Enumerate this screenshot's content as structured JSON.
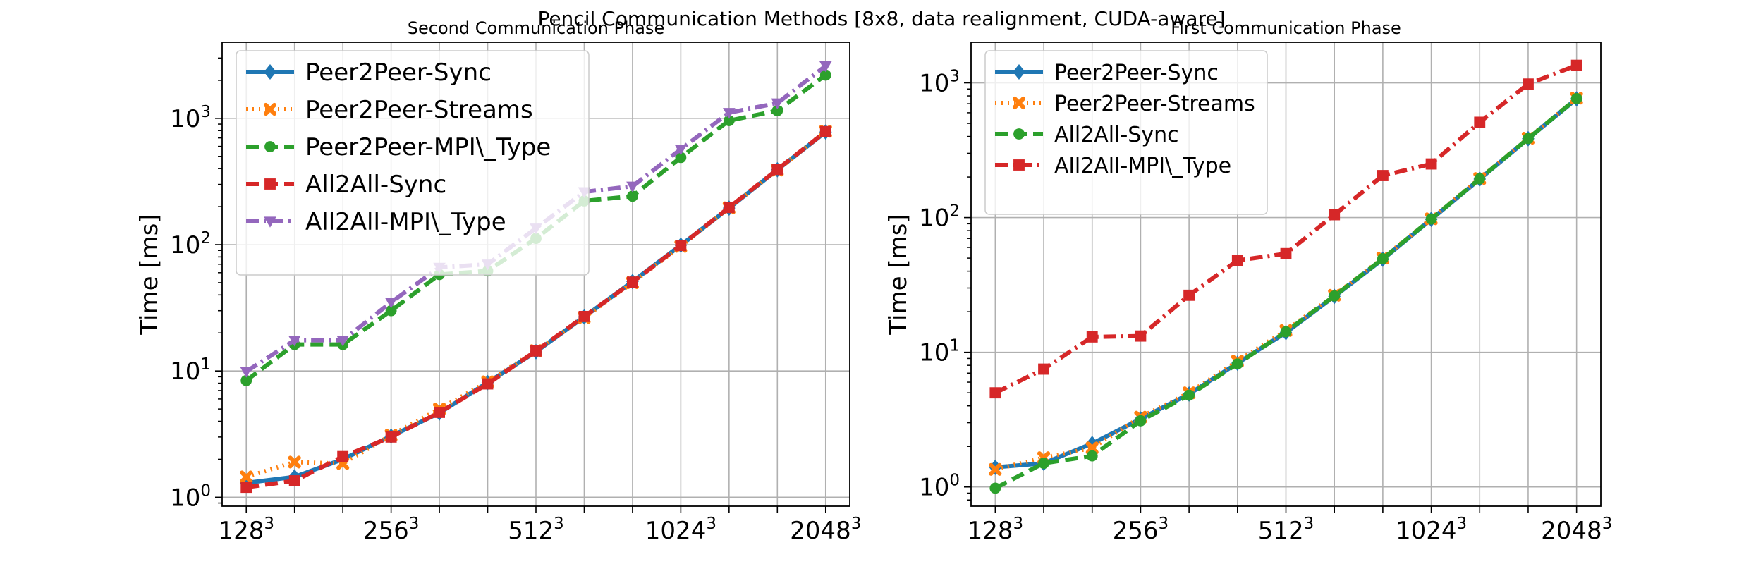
{
  "figure": {
    "title": "Pencil Communication Methods [8x8, data realignment, CUDA-aware]"
  },
  "styles": {
    "Peer2Peer-Sync": {
      "color": "#1f77b4",
      "dash": "",
      "marker": "diamond"
    },
    "Peer2Peer-Streams": {
      "color": "#ff7f0e",
      "dash": "2,7",
      "marker": "x"
    },
    "Peer2Peer-MPI\\_Type": {
      "color": "#2ca02c",
      "dash": "18,9",
      "marker": "circle"
    },
    "All2All-Sync": {
      "color": "#d62728",
      "dash": "18,9",
      "marker": "square"
    },
    "All2All-MPI\\_Type": {
      "color": "#9467bd",
      "dash": "18,7,3,7",
      "marker": "triangle-down"
    },
    "All2All-MPI\\_Type@right": {
      "color": "#d62728",
      "dash": "18,7,3,7",
      "marker": "square"
    },
    "All2All-Sync@right": {
      "color": "#2ca02c",
      "dash": "18,9",
      "marker": "circle"
    }
  },
  "chart_data": [
    {
      "type": "line",
      "title": "Second Communication Phase",
      "xlabel": "",
      "ylabel": "Time [ms]",
      "yscale": "log",
      "ylim": [
        0.85,
        4000
      ],
      "x_ticks": [
        {
          "base": "128",
          "exp": "3",
          "pos": 1
        },
        {
          "base": "256",
          "exp": "3",
          "pos": 4
        },
        {
          "base": "512",
          "exp": "3",
          "pos": 7
        },
        {
          "base": "1024",
          "exp": "3",
          "pos": 10
        },
        {
          "base": "2048",
          "exp": "3",
          "pos": 13
        }
      ],
      "y_ticks": [
        {
          "base": "10",
          "exp": "0",
          "value": 1
        },
        {
          "base": "10",
          "exp": "1",
          "value": 10
        },
        {
          "base": "10",
          "exp": "2",
          "value": 100
        },
        {
          "base": "10",
          "exp": "3",
          "value": 1000
        }
      ],
      "x_positions": [
        1,
        2,
        3,
        4,
        5,
        6,
        7,
        8,
        9,
        10,
        11,
        12,
        13
      ],
      "grid": true,
      "legend_position": "upper-left",
      "series": [
        {
          "name": "Peer2Peer-Sync",
          "style": "Peer2Peer-Sync",
          "values": [
            1.3,
            1.45,
            2.0,
            3.05,
            4.65,
            8.1,
            14.2,
            26.8,
            51.0,
            99.0,
            195.0,
            392.0,
            780.0
          ]
        },
        {
          "name": "Peer2Peer-Streams",
          "style": "Peer2Peer-Streams",
          "values": [
            1.45,
            1.9,
            1.85,
            3.1,
            5.0,
            8.2,
            14.5,
            26.5,
            50.0,
            97.0,
            196.0,
            390.0,
            790.0
          ]
        },
        {
          "name": "Peer2Peer-MPI\\_Type",
          "style": "Peer2Peer-MPI\\_Type",
          "values": [
            8.4,
            16.2,
            16.2,
            30.0,
            58.0,
            62.0,
            112.0,
            222.0,
            242.0,
            490.0,
            960.0,
            1150.0,
            2200.0
          ]
        },
        {
          "name": "All2All-Sync",
          "style": "All2All-Sync",
          "values": [
            1.2,
            1.35,
            2.1,
            3.0,
            4.7,
            7.9,
            14.4,
            27.0,
            50.5,
            98.5,
            197.0,
            394.0,
            785.0
          ]
        },
        {
          "name": "All2All-MPI\\_Type",
          "style": "All2All-MPI\\_Type",
          "values": [
            9.9,
            17.5,
            17.5,
            35.0,
            66.0,
            70.0,
            135.0,
            262.0,
            290.0,
            570.0,
            1110.0,
            1320.0,
            2600.0
          ]
        }
      ]
    },
    {
      "type": "line",
      "title": "First Communication Phase",
      "xlabel": "",
      "ylabel": "Time [ms]",
      "yscale": "log",
      "ylim": [
        0.72,
        2000
      ],
      "x_ticks": [
        {
          "base": "128",
          "exp": "3",
          "pos": 1
        },
        {
          "base": "256",
          "exp": "3",
          "pos": 4
        },
        {
          "base": "512",
          "exp": "3",
          "pos": 7
        },
        {
          "base": "1024",
          "exp": "3",
          "pos": 10
        },
        {
          "base": "2048",
          "exp": "3",
          "pos": 13
        }
      ],
      "y_ticks": [
        {
          "base": "10",
          "exp": "0",
          "value": 1
        },
        {
          "base": "10",
          "exp": "1",
          "value": 10
        },
        {
          "base": "10",
          "exp": "2",
          "value": 100
        },
        {
          "base": "10",
          "exp": "3",
          "value": 1000
        }
      ],
      "x_positions": [
        1,
        2,
        3,
        4,
        5,
        6,
        7,
        8,
        9,
        10,
        11,
        12,
        13
      ],
      "grid": true,
      "legend_position": "upper-left",
      "series": [
        {
          "name": "Peer2Peer-Sync",
          "style": "Peer2Peer-Sync",
          "values": [
            1.4,
            1.5,
            2.1,
            3.2,
            4.9,
            8.3,
            14.0,
            26.0,
            49.0,
            97.0,
            193.0,
            385.0,
            760.0
          ]
        },
        {
          "name": "Peer2Peer-Streams",
          "style": "Peer2Peer-Streams",
          "values": [
            1.35,
            1.65,
            1.95,
            3.3,
            5.0,
            8.6,
            14.5,
            26.5,
            50.0,
            98.0,
            195.0,
            388.0,
            770.0
          ]
        },
        {
          "name": "All2All-Sync",
          "style": "All2All-Sync@right",
          "values": [
            0.98,
            1.5,
            1.7,
            3.1,
            4.8,
            8.2,
            14.2,
            26.2,
            49.5,
            97.5,
            194.0,
            386.0,
            765.0
          ]
        },
        {
          "name": "All2All-MPI\\_Type",
          "style": "All2All-MPI\\_Type@right",
          "values": [
            5.0,
            7.5,
            13.0,
            13.2,
            26.5,
            48.0,
            54.0,
            105.0,
            205.0,
            250.0,
            510.0,
            980.0,
            1350.0
          ]
        }
      ]
    }
  ]
}
